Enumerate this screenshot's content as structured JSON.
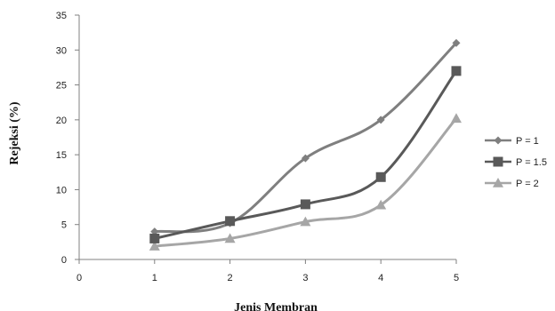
{
  "chart_data": {
    "type": "line",
    "xlabel": "Jenis Membran",
    "ylabel": "Rejeksi (%)",
    "xlim": [
      0,
      5
    ],
    "ylim": [
      0,
      35
    ],
    "xticks": [
      0,
      1,
      2,
      3,
      4,
      5
    ],
    "yticks": [
      0,
      5,
      10,
      15,
      20,
      25,
      30,
      35
    ],
    "grid": false,
    "legend_position": "right",
    "x": [
      1,
      2,
      3,
      4,
      5
    ],
    "series": [
      {
        "name": "P = 1",
        "values": [
          4,
          5.2,
          14.5,
          20,
          31
        ],
        "color": "#7f7f7f",
        "marker": "diamond"
      },
      {
        "name": "P = 1.5",
        "values": [
          3,
          5.5,
          7.9,
          11.8,
          27
        ],
        "color": "#595959",
        "marker": "square"
      },
      {
        "name": "P = 2",
        "values": [
          1.9,
          3,
          5.4,
          7.8,
          20.2
        ],
        "color": "#a6a6a6",
        "marker": "triangle"
      }
    ]
  }
}
